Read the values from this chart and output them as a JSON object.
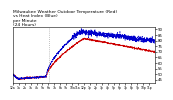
{
  "title": "Milwaukee Weather Outdoor Temperature (Red)\nvs Heat Index (Blue)\nper Minute\n(24 Hours)",
  "title_fontsize": 3.2,
  "bg_color": "#ffffff",
  "red_color": "#cc0000",
  "blue_color": "#0000cc",
  "ylim": [
    42,
    92
  ],
  "ytick_vals": [
    45,
    50,
    55,
    60,
    65,
    70,
    75,
    80,
    85,
    90
  ],
  "ytick_fontsize": 2.8,
  "xtick_fontsize": 2.2,
  "n_points": 1440,
  "vline_x": 370,
  "vline_color": "#888888"
}
